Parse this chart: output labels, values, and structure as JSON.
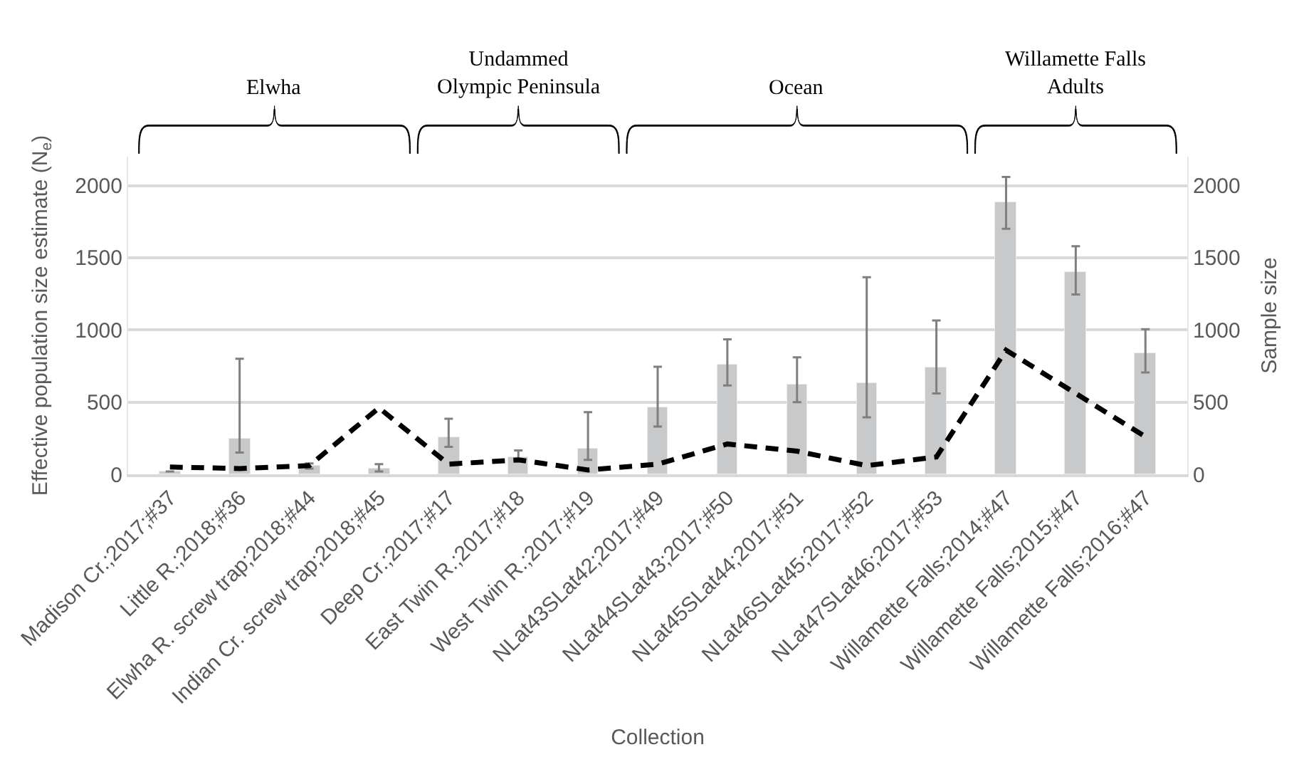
{
  "chart_data": {
    "type": "bar",
    "xlabel": "Collection",
    "ylabel": "Effective population size estimate (N$_{e}$)",
    "y2label": "Sample size",
    "categories": [
      "Madison Cr.;2017;#37",
      "Little R.;2018;#36",
      "Elwha R. screw trap;2018;#44",
      "Indian Cr. screw trap;2018;#45",
      "Deep Cr.;2017;#17",
      "East Twin R.;2017;#18",
      "West Twin R.;2017;#19",
      "NLat43SLat42;2017;#49",
      "NLat44SLat43;2017;#50",
      "NLat45SLat44;2017;#51",
      "NLat46SLat45;2017;#52",
      "NLat47SLat46;2017;#53",
      "Willamette Falls;2014;#47",
      "Willamette Falls;2015;#47",
      "Willamette Falls;2016;#47"
    ],
    "series": [
      {
        "color": "#c8c9ca",
        "values": [
          20,
          250,
          60,
          40,
          260,
          120,
          180,
          460,
          760,
          620,
          630,
          740,
          1880,
          1400,
          840
        ],
        "errors": [
          null,
          [
            150,
            800
          ],
          [
            40,
            75
          ],
          [
            20,
            70
          ],
          [
            190,
            385
          ],
          [
            90,
            165
          ],
          [
            100,
            430
          ],
          [
            330,
            745
          ],
          [
            615,
            935
          ],
          [
            500,
            810
          ],
          [
            395,
            1365
          ],
          [
            560,
            1065
          ],
          [
            1700,
            2060
          ],
          [
            1245,
            1580
          ],
          [
            705,
            1005
          ]
        ]
      },
      {
        "type": "line",
        "axis": "y2",
        "color": "#000000",
        "line_style": "dashed",
        "marker": "none",
        "values": [
          50,
          40,
          60,
          460,
          70,
          100,
          30,
          70,
          210,
          160,
          60,
          120,
          860,
          560,
          260
        ]
      }
    ],
    "annotations": [
      "Elwha",
      "Undammed\nOlympic Peninsula",
      "Ocean",
      "Willamette Falls\nAdults"
    ],
    "ylim": [
      0,
      2200
    ],
    "yticks": [
      0,
      500,
      1000,
      1500,
      2000
    ],
    "y2lim": [
      0,
      2200
    ],
    "y2ticks": [
      0,
      500,
      1000,
      1500,
      2000
    ],
    "grid": "y"
  }
}
